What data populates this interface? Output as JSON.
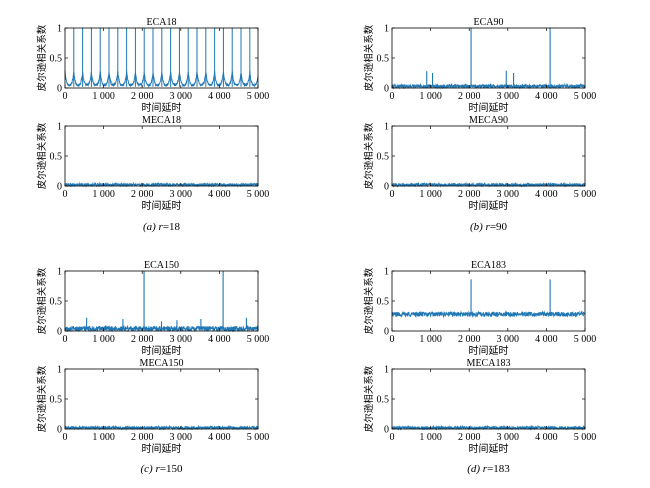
{
  "panels": [
    {
      "caption_letter": "(a)",
      "caption_var": "r",
      "caption_value": "=18",
      "charts": [
        {
          "type": "line",
          "title": "ECA18",
          "xlabel": "时间延时",
          "ylabel": "皮尔逊相关系数",
          "xlim": [
            0,
            5000
          ],
          "ylim": [
            0,
            1
          ],
          "xticks": [
            0,
            1000,
            2000,
            3000,
            4000,
            5000
          ],
          "xtick_labels": [
            "0",
            "1 000",
            "2 000",
            "3 000",
            "4 000",
            "5 000"
          ],
          "yticks": [
            0,
            0.5,
            1
          ],
          "ytick_labels": [
            "0",
            "0.5",
            "1"
          ],
          "series_color": "#1f77b4",
          "noise_baseline": 0.05,
          "noise_amplitude": 0.04,
          "periodic_spike_interval": 228,
          "periodic_spike_value": 1.0,
          "periodic_bump_value": 0.22,
          "spikes": []
        },
        {
          "type": "line",
          "title": "MECA18",
          "xlabel": "时间延时",
          "ylabel": "皮尔逊相关系数",
          "xlim": [
            0,
            5000
          ],
          "ylim": [
            0,
            1
          ],
          "xticks": [
            0,
            1000,
            2000,
            3000,
            4000,
            5000
          ],
          "xtick_labels": [
            "0",
            "1 000",
            "2 000",
            "3 000",
            "4 000",
            "5 000"
          ],
          "yticks": [
            0,
            0.5,
            1
          ],
          "ytick_labels": [
            "0",
            "0.5",
            "1"
          ],
          "series_color": "#1f77b4",
          "noise_baseline": 0.02,
          "noise_amplitude": 0.025,
          "spikes": []
        }
      ]
    },
    {
      "caption_letter": "(b)",
      "caption_var": "r",
      "caption_value": "=90",
      "charts": [
        {
          "type": "line",
          "title": "ECA90",
          "xlabel": "时间延时",
          "ylabel": "皮尔逊相关系数",
          "xlim": [
            0,
            5000
          ],
          "ylim": [
            0,
            1
          ],
          "xticks": [
            0,
            1000,
            2000,
            3000,
            4000,
            5000
          ],
          "xtick_labels": [
            "0",
            "1 000",
            "2 000",
            "3 000",
            "4 000",
            "5 000"
          ],
          "yticks": [
            0,
            0.5,
            1
          ],
          "ytick_labels": [
            "0",
            "0.5",
            "1"
          ],
          "series_color": "#1f77b4",
          "noise_baseline": 0.03,
          "noise_amplitude": 0.03,
          "spikes": [
            {
              "x": 900,
              "y": 0.28
            },
            {
              "x": 1050,
              "y": 0.25
            },
            {
              "x": 2048,
              "y": 1.0
            },
            {
              "x": 2960,
              "y": 0.29
            },
            {
              "x": 3150,
              "y": 0.25
            },
            {
              "x": 4096,
              "y": 1.0
            }
          ]
        },
        {
          "type": "line",
          "title": "MECA90",
          "xlabel": "时间延时",
          "ylabel": "皮尔逊相关系数",
          "xlim": [
            0,
            5000
          ],
          "ylim": [
            0,
            1
          ],
          "xticks": [
            0,
            1000,
            2000,
            3000,
            4000,
            5000
          ],
          "xtick_labels": [
            "0",
            "1 000",
            "2 000",
            "3 000",
            "4 000",
            "5 000"
          ],
          "yticks": [
            0,
            0.5,
            1
          ],
          "ytick_labels": [
            "0",
            "0.5",
            "1"
          ],
          "series_color": "#1f77b4",
          "noise_baseline": 0.02,
          "noise_amplitude": 0.025,
          "spikes": []
        }
      ]
    },
    {
      "caption_letter": "(c)",
      "caption_var": "r",
      "caption_value": "=150",
      "charts": [
        {
          "type": "line",
          "title": "ECA150",
          "xlabel": "时间延时",
          "ylabel": "皮尔逊相关系数",
          "xlim": [
            0,
            5000
          ],
          "ylim": [
            0,
            1
          ],
          "xticks": [
            0,
            1000,
            2000,
            3000,
            4000,
            5000
          ],
          "xtick_labels": [
            "0",
            "1 000",
            "2 000",
            "3 000",
            "4 000",
            "5 000"
          ],
          "yticks": [
            0,
            0.5,
            1
          ],
          "ytick_labels": [
            "0",
            "0.5",
            "1"
          ],
          "series_color": "#1f77b4",
          "noise_baseline": 0.04,
          "noise_amplitude": 0.04,
          "spikes": [
            {
              "x": 560,
              "y": 0.22
            },
            {
              "x": 1500,
              "y": 0.2
            },
            {
              "x": 2048,
              "y": 1.0
            },
            {
              "x": 2500,
              "y": 0.16
            },
            {
              "x": 2900,
              "y": 0.18
            },
            {
              "x": 3520,
              "y": 0.2
            },
            {
              "x": 4096,
              "y": 1.0
            },
            {
              "x": 4700,
              "y": 0.22
            }
          ]
        },
        {
          "type": "line",
          "title": "MECA150",
          "xlabel": "时间延时",
          "ylabel": "皮尔逊相关系数",
          "xlim": [
            0,
            5000
          ],
          "ylim": [
            0,
            1
          ],
          "xticks": [
            0,
            1000,
            2000,
            3000,
            4000,
            5000
          ],
          "xtick_labels": [
            "0",
            "1 000",
            "2 000",
            "3 000",
            "4 000",
            "5 000"
          ],
          "yticks": [
            0,
            0.5,
            1
          ],
          "ytick_labels": [
            "0",
            "0.5",
            "1"
          ],
          "series_color": "#1f77b4",
          "noise_baseline": 0.02,
          "noise_amplitude": 0.025,
          "spikes": []
        }
      ]
    },
    {
      "caption_letter": "(d)",
      "caption_var": "r",
      "caption_value": "=183",
      "charts": [
        {
          "type": "line",
          "title": "ECA183",
          "xlabel": "时间延时",
          "ylabel": "皮尔逊相关系数",
          "xlim": [
            0,
            5000
          ],
          "ylim": [
            0,
            1
          ],
          "xticks": [
            0,
            1000,
            2000,
            3000,
            4000,
            5000
          ],
          "xtick_labels": [
            "0",
            "1 000",
            "2 000",
            "3 000",
            "4 000",
            "5 000"
          ],
          "yticks": [
            0,
            0.5,
            1
          ],
          "ytick_labels": [
            "0",
            "0.5",
            "1"
          ],
          "series_color": "#1f77b4",
          "noise_baseline": 0.28,
          "noise_amplitude": 0.04,
          "spikes": [
            {
              "x": 2048,
              "y": 0.86
            },
            {
              "x": 4096,
              "y": 0.86
            }
          ]
        },
        {
          "type": "line",
          "title": "MECA183",
          "xlabel": "时间延时",
          "ylabel": "皮尔逊相关系数",
          "xlim": [
            0,
            5000
          ],
          "ylim": [
            0,
            1
          ],
          "xticks": [
            0,
            1000,
            2000,
            3000,
            4000,
            5000
          ],
          "xtick_labels": [
            "0",
            "1 000",
            "2 000",
            "3 000",
            "4 000",
            "5 000"
          ],
          "yticks": [
            0,
            0.5,
            1
          ],
          "ytick_labels": [
            "0",
            "0.5",
            "1"
          ],
          "series_color": "#1f77b4",
          "noise_baseline": 0.02,
          "noise_amplitude": 0.025,
          "spikes": []
        }
      ]
    }
  ]
}
